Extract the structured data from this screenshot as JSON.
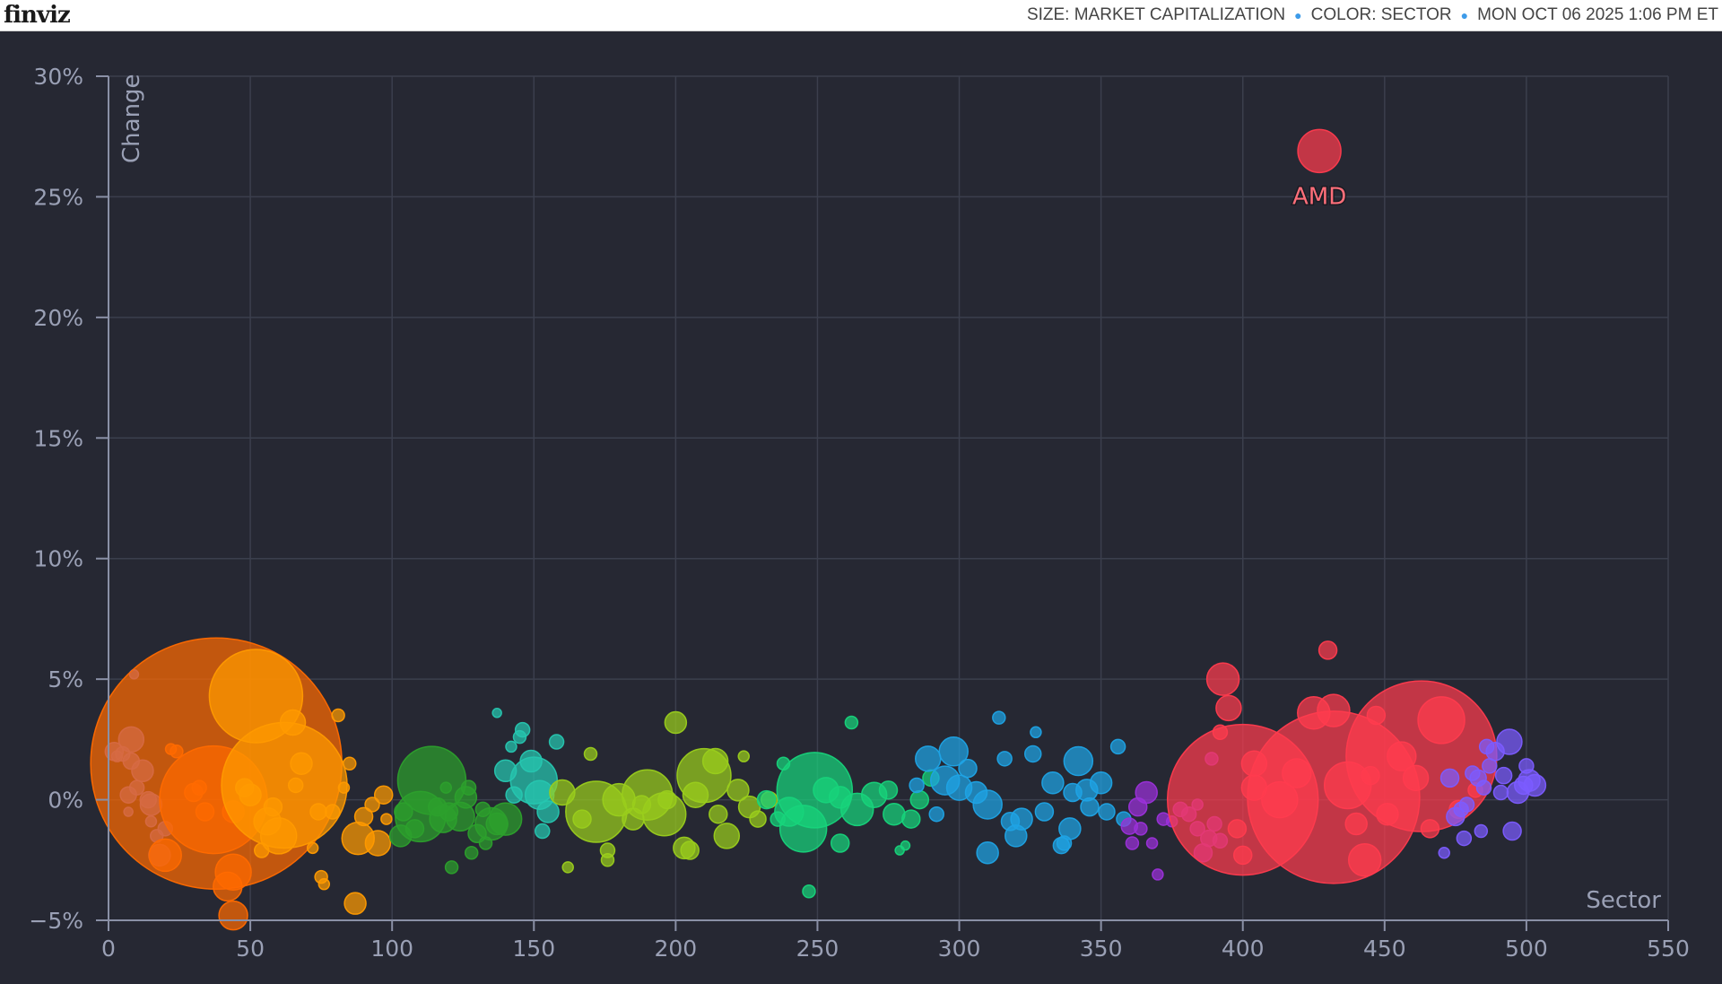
{
  "header": {
    "logo": "finviz",
    "size_label": "SIZE: MARKET CAPITALIZATION",
    "color_label": "COLOR: SECTOR",
    "timestamp": "MON OCT 06 2025 1:06 PM ET"
  },
  "colors": {
    "background": "#262833",
    "grid": "#3b3f4d",
    "axis": "#8a90a6",
    "tick_text": "#9aa0b5",
    "header_dot": "#3d9be9"
  },
  "chart_data": {
    "type": "scatter",
    "xlabel": "Sector",
    "ylabel": "Change",
    "xlim": [
      0,
      550
    ],
    "ylim": [
      -5,
      30
    ],
    "x_ticks": [
      0,
      50,
      100,
      150,
      200,
      250,
      300,
      350,
      400,
      450,
      500,
      550
    ],
    "y_ticks": [
      -5,
      0,
      5,
      10,
      15,
      20,
      25,
      30
    ],
    "y_tick_labels": [
      "−5%",
      "0%",
      "5%",
      "10%",
      "15%",
      "20%",
      "25%",
      "30%"
    ],
    "grid": true,
    "annotations": [
      {
        "text": "AMD",
        "x": 427,
        "y": 26.9
      }
    ],
    "series": [
      {
        "color": "#6c6cf0",
        "points": [
          [
            2,
            2.0,
            10
          ],
          [
            3,
            1.8,
            6
          ],
          [
            5,
            1.9,
            8
          ],
          [
            7,
            0.2,
            9
          ],
          [
            7,
            -0.5,
            5
          ],
          [
            8,
            1.6,
            9
          ],
          [
            9,
            5.2,
            5
          ],
          [
            10,
            0.5,
            8
          ],
          [
            12,
            1.2,
            12
          ],
          [
            14,
            0.0,
            9
          ],
          [
            15,
            -0.2,
            12
          ],
          [
            15,
            -0.9,
            6
          ],
          [
            17,
            -1.5,
            7
          ],
          [
            18,
            -2.3,
            12
          ],
          [
            20,
            -1.2,
            8
          ],
          [
            8,
            2.5,
            14
          ]
        ]
      },
      {
        "color": "#ff6a00",
        "points": [
          [
            38,
            1.5,
            140
          ],
          [
            37,
            0,
            60
          ],
          [
            44,
            -3.0,
            20
          ],
          [
            42,
            -3.6,
            16
          ],
          [
            44,
            -4.8,
            16
          ],
          [
            20,
            -2.3,
            18
          ],
          [
            24,
            2.0,
            7
          ],
          [
            22,
            2.1,
            6
          ],
          [
            30,
            0.3,
            10
          ],
          [
            34,
            -0.5,
            10
          ],
          [
            32,
            0.5,
            8
          ],
          [
            44,
            -0.5,
            12
          ]
        ]
      },
      {
        "color": "#ff9a00",
        "points": [
          [
            52,
            4.3,
            52
          ],
          [
            62,
            0.6,
            70
          ],
          [
            65,
            3.2,
            14
          ],
          [
            60,
            -1.5,
            20
          ],
          [
            68,
            1.5,
            12
          ],
          [
            56,
            -0.9,
            15
          ],
          [
            48,
            0.5,
            10
          ],
          [
            74,
            -0.5,
            9
          ],
          [
            75,
            -3.2,
            7
          ],
          [
            76,
            -3.5,
            6
          ],
          [
            81,
            3.5,
            7
          ],
          [
            85,
            1.5,
            7
          ],
          [
            87,
            -4.3,
            12
          ],
          [
            88,
            -1.6,
            18
          ],
          [
            95,
            -1.8,
            14
          ],
          [
            90,
            -0.7,
            10
          ],
          [
            93,
            -0.2,
            8
          ],
          [
            97,
            0.2,
            10
          ],
          [
            83,
            0.5,
            6
          ],
          [
            79,
            -0.5,
            8
          ],
          [
            72,
            -2,
            6
          ],
          [
            54,
            -2.1,
            8
          ],
          [
            50,
            0.2,
            12
          ],
          [
            58,
            -0.3,
            10
          ],
          [
            66,
            0.6,
            8
          ],
          [
            98,
            -0.8,
            6
          ]
        ]
      },
      {
        "color": "#2ca02c",
        "points": [
          [
            114,
            0.8,
            38
          ],
          [
            110,
            -0.7,
            28
          ],
          [
            103,
            -1.5,
            12
          ],
          [
            104,
            -0.5,
            10
          ],
          [
            108,
            -1.2,
            10
          ],
          [
            118,
            -0.8,
            15
          ],
          [
            120,
            -0.5,
            10
          ],
          [
            124,
            -0.7,
            16
          ],
          [
            126,
            0.1,
            12
          ],
          [
            130,
            -1.4,
            10
          ],
          [
            135,
            -1.0,
            18
          ],
          [
            137,
            -1.0,
            12
          ],
          [
            132,
            -0.4,
            8
          ],
          [
            128,
            -2.2,
            7
          ],
          [
            121,
            -2.8,
            7
          ],
          [
            127,
            0.5,
            8
          ],
          [
            116,
            -0.3,
            10
          ],
          [
            140,
            -0.8,
            18
          ],
          [
            133,
            -1.8,
            7
          ],
          [
            119,
            0.5,
            6
          ]
        ]
      },
      {
        "color": "#26c6b0",
        "points": [
          [
            150,
            0.8,
            26
          ],
          [
            146,
            2.9,
            8
          ],
          [
            149,
            1.6,
            12
          ],
          [
            152,
            0.2,
            16
          ],
          [
            142,
            2.2,
            6
          ],
          [
            145,
            2.6,
            7
          ],
          [
            155,
            -0.5,
            12
          ],
          [
            158,
            2.4,
            8
          ],
          [
            140,
            1.2,
            12
          ],
          [
            137,
            3.6,
            5
          ],
          [
            143,
            0.2,
            9
          ],
          [
            153,
            -1.3,
            8
          ]
        ]
      },
      {
        "color": "#9acd1c",
        "points": [
          [
            172,
            -0.5,
            34
          ],
          [
            190,
            0.2,
            28
          ],
          [
            210,
            1.0,
            30
          ],
          [
            180,
            0.0,
            18
          ],
          [
            196,
            -0.6,
            24
          ],
          [
            200,
            3.2,
            12
          ],
          [
            203,
            -2.0,
            12
          ],
          [
            214,
            1.6,
            14
          ],
          [
            218,
            -1.5,
            14
          ],
          [
            226,
            -0.3,
            12
          ],
          [
            162,
            -2.8,
            6
          ],
          [
            170,
            1.9,
            7
          ],
          [
            176,
            -2.1,
            8
          ],
          [
            185,
            -0.8,
            12
          ],
          [
            160,
            0.3,
            14
          ],
          [
            207,
            0.2,
            14
          ],
          [
            222,
            0.4,
            12
          ],
          [
            229,
            -0.8,
            9
          ],
          [
            224,
            1.8,
            6
          ],
          [
            197,
            0.0,
            10
          ],
          [
            167,
            -0.8,
            10
          ],
          [
            215,
            -0.6,
            10
          ],
          [
            233,
            0.0,
            9
          ],
          [
            188,
            -0.2,
            10
          ],
          [
            176,
            -2.5,
            7
          ],
          [
            205,
            -2.1,
            10
          ]
        ]
      },
      {
        "color": "#17d47b",
        "points": [
          [
            249,
            0.4,
            42
          ],
          [
            245,
            -1.2,
            26
          ],
          [
            240,
            -0.5,
            16
          ],
          [
            253,
            0.4,
            14
          ],
          [
            258,
            -1.8,
            10
          ],
          [
            262,
            3.2,
            7
          ],
          [
            264,
            -0.4,
            18
          ],
          [
            270,
            0.2,
            14
          ],
          [
            275,
            0.4,
            10
          ],
          [
            277,
            -0.6,
            12
          ],
          [
            281,
            -1.9,
            5
          ],
          [
            279,
            -2.1,
            5
          ],
          [
            283,
            -0.8,
            10
          ],
          [
            286,
            0.0,
            10
          ],
          [
            290,
            0.9,
            9
          ],
          [
            247,
            -3.8,
            7
          ],
          [
            238,
            1.5,
            7
          ],
          [
            232,
            0.0,
            10
          ],
          [
            236,
            -0.8,
            8
          ],
          [
            258,
            0.1,
            12
          ]
        ]
      },
      {
        "color": "#1fa3e5",
        "points": [
          [
            289,
            1.7,
            14
          ],
          [
            295,
            0.8,
            16
          ],
          [
            298,
            2.0,
            16
          ],
          [
            300,
            0.5,
            14
          ],
          [
            306,
            0.3,
            12
          ],
          [
            310,
            -2.2,
            12
          ],
          [
            310,
            -0.2,
            16
          ],
          [
            314,
            3.4,
            7
          ],
          [
            316,
            1.7,
            8
          ],
          [
            318,
            -0.9,
            10
          ],
          [
            320,
            -1.5,
            12
          ],
          [
            322,
            -0.8,
            12
          ],
          [
            326,
            1.9,
            9
          ],
          [
            327,
            2.8,
            6
          ],
          [
            330,
            -0.5,
            10
          ],
          [
            333,
            0.7,
            12
          ],
          [
            337,
            -1.8,
            8
          ],
          [
            339,
            -1.2,
            12
          ],
          [
            340,
            0.3,
            10
          ],
          [
            342,
            1.6,
            16
          ],
          [
            345,
            0.4,
            12
          ],
          [
            346,
            -0.3,
            10
          ],
          [
            350,
            0.7,
            12
          ],
          [
            352,
            -0.5,
            9
          ],
          [
            356,
            2.2,
            8
          ],
          [
            358,
            -0.8,
            8
          ],
          [
            303,
            1.3,
            10
          ],
          [
            292,
            -0.6,
            8
          ],
          [
            336,
            -1.9,
            9
          ],
          [
            285,
            0.6,
            8
          ]
        ]
      },
      {
        "color": "#9b30d9",
        "points": [
          [
            366,
            0.3,
            12
          ],
          [
            363,
            -0.3,
            10
          ],
          [
            360,
            -1.1,
            9
          ],
          [
            361,
            -1.8,
            7
          ],
          [
            364,
            -1.2,
            7
          ],
          [
            368,
            -1.8,
            6
          ],
          [
            370,
            -3.1,
            6
          ],
          [
            372,
            -0.8,
            7
          ],
          [
            375,
            -0.9,
            6
          ],
          [
            378,
            -0.4,
            8
          ],
          [
            381,
            -0.6,
            8
          ],
          [
            384,
            -1.2,
            8
          ],
          [
            386,
            -2.2,
            10
          ],
          [
            388,
            -1.6,
            9
          ],
          [
            390,
            -1.0,
            8
          ],
          [
            392,
            -1.7,
            8
          ],
          [
            389,
            1.7,
            7
          ],
          [
            384,
            -0.2,
            6
          ]
        ]
      },
      {
        "color": "#ff3b4e",
        "points": [
          [
            427,
            26.9,
            24
          ],
          [
            400,
            0.0,
            84
          ],
          [
            432,
            0.1,
            96
          ],
          [
            463,
            1.8,
            84
          ],
          [
            393,
            5.0,
            18
          ],
          [
            395,
            3.8,
            14
          ],
          [
            430,
            6.2,
            10
          ],
          [
            425,
            3.6,
            18
          ],
          [
            432,
            3.7,
            18
          ],
          [
            470,
            3.3,
            26
          ],
          [
            437,
            0.6,
            26
          ],
          [
            443,
            -2.5,
            18
          ],
          [
            456,
            1.8,
            16
          ],
          [
            461,
            0.9,
            14
          ],
          [
            404,
            1.5,
            14
          ],
          [
            398,
            -1.2,
            10
          ],
          [
            400,
            -2.3,
            10
          ],
          [
            392,
            2.8,
            8
          ],
          [
            447,
            3.5,
            10
          ],
          [
            451,
            -0.6,
            12
          ],
          [
            466,
            -1.2,
            10
          ],
          [
            476,
            -0.4,
            10
          ],
          [
            482,
            0.4,
            8
          ],
          [
            404,
            0.5,
            14
          ],
          [
            413,
            0.0,
            20
          ],
          [
            419,
            1.1,
            16
          ],
          [
            440,
            -1.0,
            12
          ],
          [
            445,
            1.0,
            10
          ]
        ]
      },
      {
        "color": "#7c5cff",
        "points": [
          [
            473,
            0.9,
            10
          ],
          [
            475,
            -0.7,
            10
          ],
          [
            477,
            -0.4,
            8
          ],
          [
            479,
            -0.2,
            8
          ],
          [
            481,
            1.1,
            8
          ],
          [
            483,
            0.9,
            9
          ],
          [
            485,
            0.5,
            8
          ],
          [
            487,
            1.4,
            8
          ],
          [
            489,
            2.0,
            10
          ],
          [
            491,
            0.3,
            8
          ],
          [
            492,
            1.0,
            9
          ],
          [
            494,
            2.4,
            14
          ],
          [
            495,
            -1.3,
            10
          ],
          [
            497,
            0.3,
            12
          ],
          [
            499,
            0.6,
            10
          ],
          [
            501,
            0.8,
            12
          ],
          [
            503,
            0.6,
            12
          ],
          [
            486,
            2.2,
            8
          ],
          [
            471,
            -2.2,
            6
          ],
          [
            478,
            -1.6,
            8
          ],
          [
            484,
            -1.3,
            7
          ],
          [
            500,
            1.4,
            8
          ]
        ]
      }
    ]
  }
}
